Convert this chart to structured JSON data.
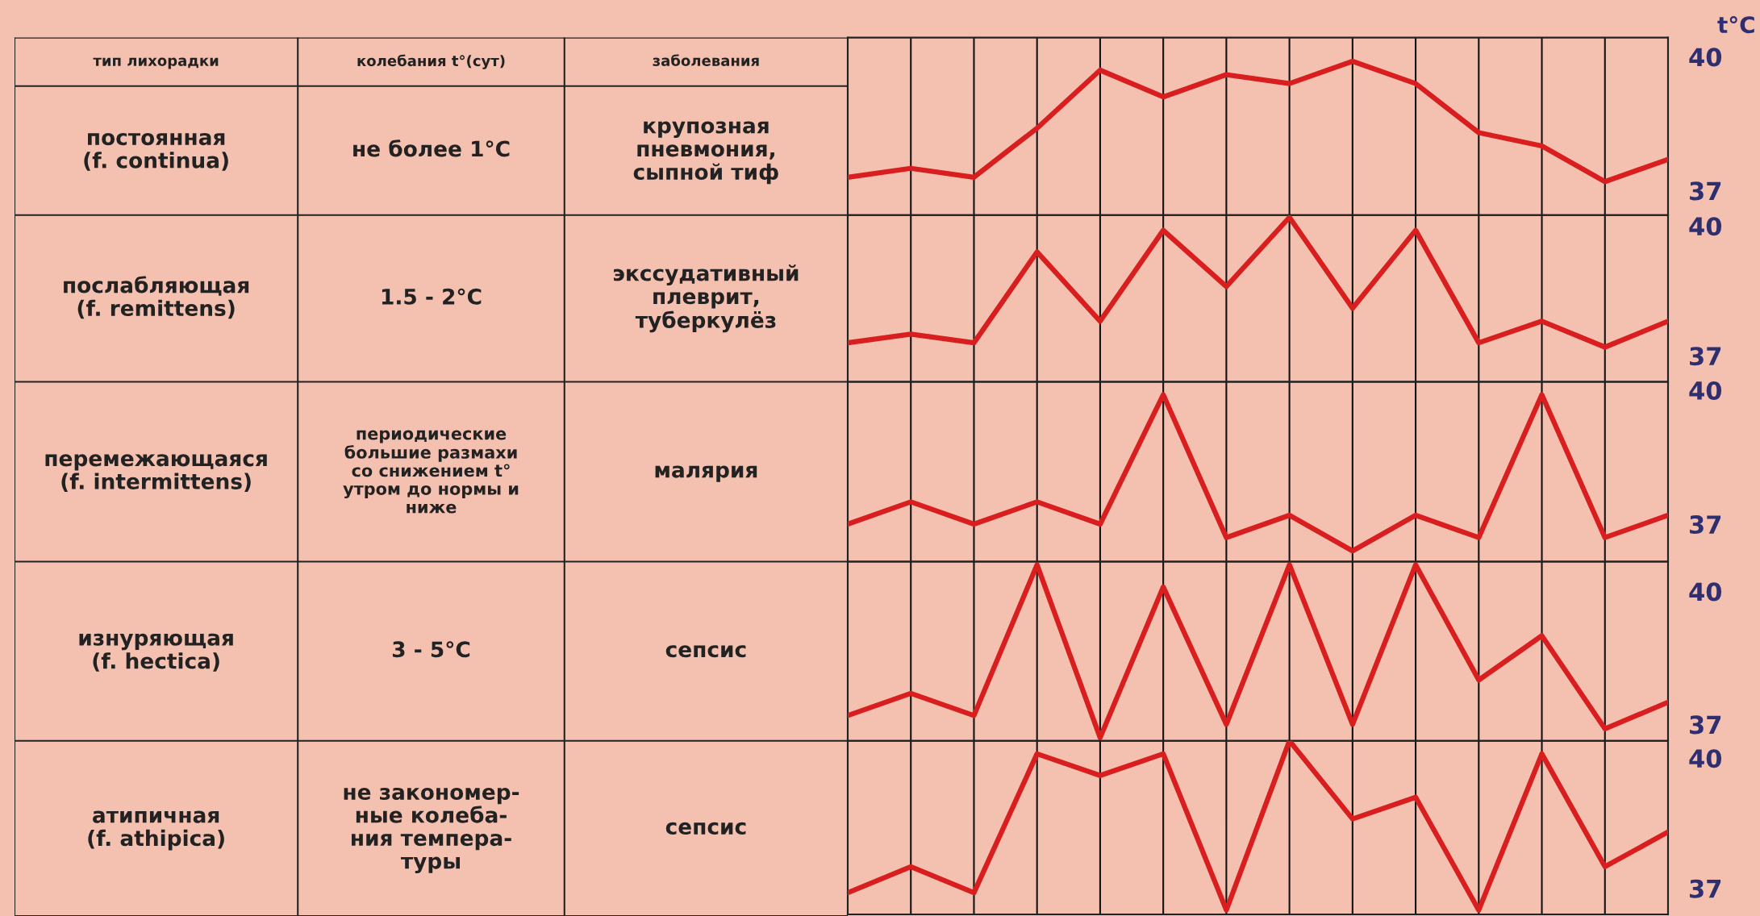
{
  "chart_data": [
    {
      "type": "other",
      "categories": [
        "тип лихорадки",
        "колебания t°(сут)",
        "заболевания"
      ],
      "cell_labels": [
        [
          "постоянная\n(f. continua)",
          "не более 1°C",
          "крупозная\nпневмония,\nсыпной тиф"
        ],
        [
          "послабляющая\n(f. remittens)",
          "1.5 - 2°C",
          "экссудативный\nплеврит,\nтуберкулёз"
        ],
        [
          "перемежающаяся\n(f. intermittens)",
          "периодические\nбольшие размахи\nсо снижением t°\nутром до нормы и\nниже",
          "малярия"
        ],
        [
          "изнуряющая\n(f. hectica)",
          "3 - 5°C",
          "сепсис"
        ],
        [
          "атипичная\n(f. athipica)",
          "не закономер-\nные колеба-\nния темпера-\nтуры",
          "сепсис"
        ]
      ]
    },
    {
      "type": "line",
      "ylabel": "t°C",
      "categories": [
        null,
        null,
        null,
        null,
        null,
        null,
        null,
        null,
        null,
        null,
        null,
        null,
        null,
        null
      ],
      "series": [
        {
          "color": "#d81e1e",
          "values": [
            37.3,
            37.5,
            37.3,
            38.4,
            39.7,
            39.1,
            39.6,
            39.4,
            39.9,
            39.4,
            38.3,
            38.0,
            37.2,
            37.7
          ]
        }
      ],
      "ylim": [
        36.45,
        40.43
      ],
      "yticks": [
        37,
        40
      ],
      "grid": "x",
      "tick_labels": "y"
    },
    {
      "type": "line",
      "categories": [
        null,
        null,
        null,
        null,
        null,
        null,
        null,
        null,
        null,
        null,
        null,
        null,
        null,
        null
      ],
      "series": [
        {
          "color": "#d81e1e",
          "values": [
            37.3,
            37.5,
            37.3,
            39.4,
            37.8,
            39.9,
            38.6,
            40.2,
            38.1,
            39.9,
            37.3,
            37.8,
            37.2,
            37.8
          ]
        }
      ],
      "ylim": [
        36.4,
        40.25
      ],
      "yticks": [
        37,
        40
      ],
      "grid": "x",
      "tick_labels": "y"
    },
    {
      "type": "line",
      "categories": [
        null,
        null,
        null,
        null,
        null,
        null,
        null,
        null,
        null,
        null,
        null,
        null,
        null,
        null
      ],
      "series": [
        {
          "color": "#d81e1e",
          "values": [
            37.0,
            37.5,
            37.0,
            37.5,
            37.0,
            39.9,
            36.7,
            37.2,
            36.4,
            37.2,
            36.7,
            39.9,
            36.7,
            37.2
          ]
        }
      ],
      "ylim": [
        36.16,
        40.19
      ],
      "yticks": [
        37,
        40
      ],
      "grid": "x",
      "tick_labels": "y"
    },
    {
      "type": "line",
      "categories": [
        null,
        null,
        null,
        null,
        null,
        null,
        null,
        null,
        null,
        null,
        null,
        null,
        null,
        null
      ],
      "series": [
        {
          "color": "#d81e1e",
          "values": [
            37.2,
            37.7,
            37.2,
            40.6,
            36.7,
            40.1,
            37.0,
            40.6,
            37.0,
            40.6,
            38.0,
            39.0,
            36.9,
            37.5
          ]
        }
      ],
      "ylim": [
        36.63,
        40.67
      ],
      "yticks": [
        37,
        40
      ],
      "grid": "x",
      "tick_labels": "y"
    },
    {
      "type": "line",
      "categories": [
        null,
        null,
        null,
        null,
        null,
        null,
        null,
        null,
        null,
        null,
        null,
        null,
        null,
        null
      ],
      "series": [
        {
          "color": "#d81e1e",
          "values": [
            36.9,
            37.5,
            36.9,
            40.1,
            39.6,
            40.1,
            36.5,
            40.4,
            38.6,
            39.1,
            36.5,
            40.1,
            37.5,
            38.3
          ]
        }
      ],
      "ylim": [
        36.4,
        40.4
      ],
      "yticks": [
        37,
        40
      ],
      "grid": "x",
      "tick_labels": "y"
    }
  ]
}
